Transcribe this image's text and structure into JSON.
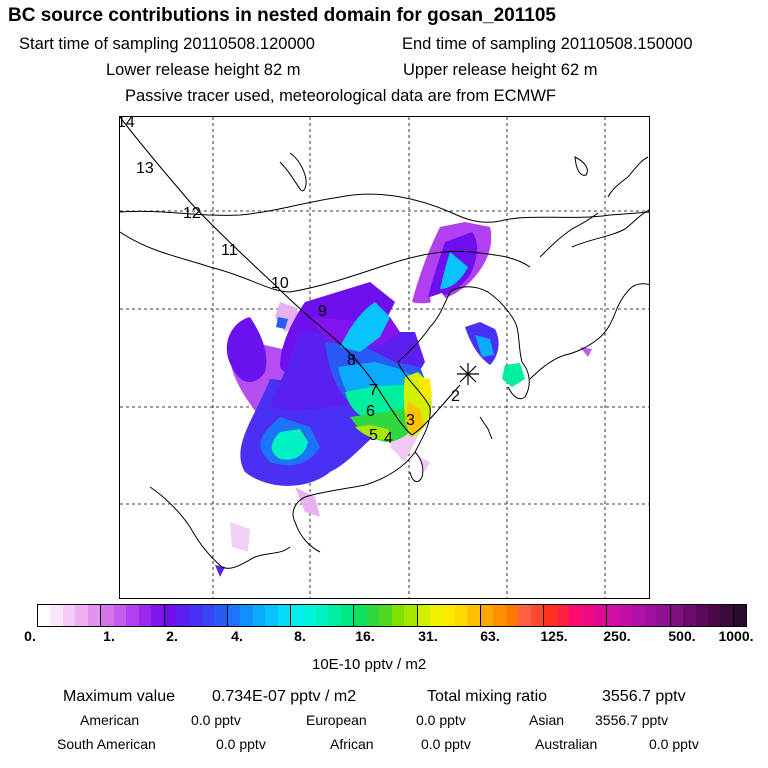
{
  "title": "BC  source contributions in nested domain for gosan_201105",
  "sampling": {
    "start_label": "Start time of sampling 20110508.120000",
    "end_label": "End time of sampling 20110508.150000"
  },
  "release": {
    "lower_label": "Lower release height   82 m",
    "upper_label": "Upper release height   62 m"
  },
  "tracer_note": "Passive tracer used, meteorological data are from ECMWF",
  "map": {
    "day_labels": [
      "14",
      "13",
      "12",
      "11",
      "10",
      "9",
      "8",
      "7",
      "6",
      "5",
      "4",
      "3",
      "2"
    ],
    "receptor_marker": "star-icon"
  },
  "colorbar": {
    "tick_labels": [
      "0.",
      "1.",
      "2.",
      "4.",
      "8.",
      "16.",
      "31.",
      "63.",
      "125.",
      "250.",
      "500.",
      "1000."
    ],
    "unit": "10E-10 pptv / m2",
    "colors": [
      "#ffffff",
      "#fbe6fb",
      "#f5ccf5",
      "#eeb0f0",
      "#e392ee",
      "#d475ee",
      "#c55aef",
      "#b040f0",
      "#9a28ef",
      "#8214f0",
      "#6e10ee",
      "#5a20f0",
      "#4a30f2",
      "#3a44f4",
      "#2a5af6",
      "#1c74f8",
      "#1090fa",
      "#0aaafc",
      "#08c4fc",
      "#05dcf8",
      "#00f0f0",
      "#00f5dc",
      "#00f2c0",
      "#00eea0",
      "#00e880",
      "#10e060",
      "#30d840",
      "#50d820",
      "#80e000",
      "#a8e800",
      "#d0f000",
      "#f0f000",
      "#ffe800",
      "#ffd800",
      "#ffc000",
      "#ffa800",
      "#ff9000",
      "#ff7800",
      "#ff6040",
      "#ff4830",
      "#ff3020",
      "#ff2040",
      "#ff0a70",
      "#f00a80",
      "#e00a90",
      "#d010a0",
      "#c010a8",
      "#b010a8",
      "#a010a0",
      "#901090",
      "#801080",
      "#6a0a6a",
      "#580a58",
      "#4a0a4a",
      "#3a0a3a",
      "#2a0a2a"
    ]
  },
  "summary": {
    "max_label": "Maximum value",
    "max_value": "0.734E-07 pptv / m2",
    "total_label": "Total mixing ratio",
    "total_value": "3556.7 pptv",
    "rows": [
      [
        {
          "label": "American",
          "value": "0.0 pptv"
        },
        {
          "label": "European",
          "value": "0.0 pptv"
        },
        {
          "label": "Asian",
          "value": "3556.7 pptv"
        }
      ],
      [
        {
          "label": "South American",
          "value": "0.0 pptv"
        },
        {
          "label": "African",
          "value": "0.0 pptv"
        },
        {
          "label": "Australian",
          "value": "0.0 pptv"
        }
      ]
    ]
  }
}
